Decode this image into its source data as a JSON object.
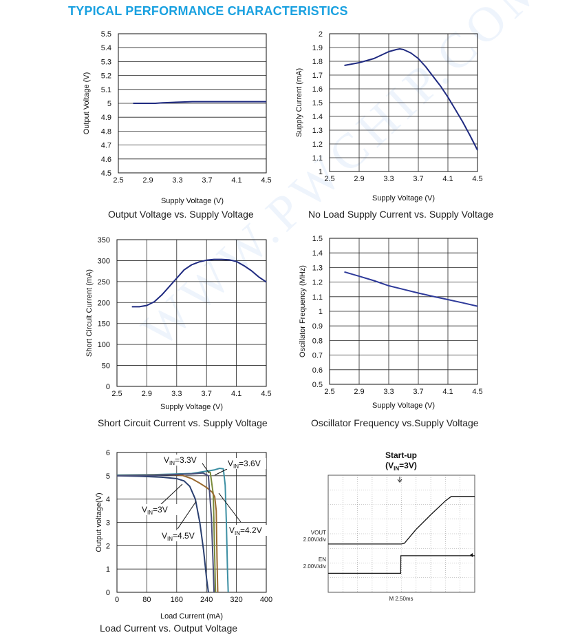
{
  "page": {
    "heading": "TYPICAL PERFORMANCE CHARACTERISTICS",
    "watermark": "WWW.PWCHIP.COM",
    "heading_color": "#1aa1e0"
  },
  "chart_data": [
    {
      "id": "c1",
      "type": "line",
      "caption": "Output Voltage vs. Supply Voltage",
      "xlabel": "Supply Voltage (V)",
      "ylabel": "Output Voltage (V)",
      "xlim": [
        2.5,
        4.5
      ],
      "ylim": [
        4.5,
        5.5
      ],
      "xticks": [
        2.5,
        2.9,
        3.3,
        3.7,
        4.1,
        4.5
      ],
      "yticks": [
        4.5,
        4.6,
        4.7,
        4.8,
        4.9,
        5,
        5.1,
        5.2,
        5.3,
        5.4,
        5.5
      ],
      "grid": "horizontal",
      "series": [
        {
          "color": "#1f2a80",
          "x": [
            2.7,
            3.0,
            3.1,
            3.3,
            3.5,
            3.7,
            4.0,
            4.3,
            4.5
          ],
          "y": [
            5.0,
            5.0,
            5.004,
            5.008,
            5.012,
            5.012,
            5.012,
            5.012,
            5.012
          ]
        }
      ]
    },
    {
      "id": "c2",
      "type": "line",
      "caption": "No Load Supply Current vs. Supply Voltage",
      "xlabel": "Supply Voltage (V)",
      "ylabel": "Supply Current (mA)",
      "xlim": [
        2.5,
        4.5
      ],
      "ylim": [
        1,
        2
      ],
      "xticks": [
        2.5,
        2.9,
        3.3,
        3.7,
        4.1,
        4.5
      ],
      "yticks": [
        1,
        1.1,
        1.2,
        1.3,
        1.4,
        1.5,
        1.6,
        1.7,
        1.8,
        1.9,
        2
      ],
      "grid": "both",
      "series": [
        {
          "color": "#1f2a80",
          "x": [
            2.7,
            2.8,
            2.9,
            3.0,
            3.1,
            3.2,
            3.3,
            3.4,
            3.45,
            3.5,
            3.6,
            3.7,
            3.8,
            3.9,
            4.0,
            4.1,
            4.2,
            4.3,
            4.4,
            4.5
          ],
          "y": [
            1.77,
            1.78,
            1.79,
            1.805,
            1.82,
            1.845,
            1.87,
            1.885,
            1.89,
            1.885,
            1.86,
            1.82,
            1.76,
            1.69,
            1.62,
            1.54,
            1.45,
            1.36,
            1.26,
            1.155
          ]
        }
      ]
    },
    {
      "id": "c3",
      "type": "line",
      "caption": "Short Circuit Current vs. Supply Voltage",
      "xlabel": "Supply Voltage (V)",
      "ylabel": "Short Circuit Current (mA)",
      "xlim": [
        2.5,
        4.5
      ],
      "ylim": [
        0,
        350
      ],
      "xticks": [
        2.5,
        2.9,
        3.3,
        3.7,
        4.1,
        4.5
      ],
      "yticks": [
        0,
        50,
        100,
        150,
        200,
        250,
        300,
        350
      ],
      "grid": "both",
      "series": [
        {
          "color": "#1f2a80",
          "x": [
            2.7,
            2.8,
            2.9,
            3.0,
            3.1,
            3.2,
            3.3,
            3.4,
            3.5,
            3.6,
            3.7,
            3.8,
            3.9,
            4.0,
            4.1,
            4.2,
            4.3,
            4.4,
            4.5
          ],
          "y": [
            190,
            190,
            193,
            202,
            218,
            238,
            258,
            278,
            290,
            297,
            301,
            303,
            303,
            302,
            298,
            288,
            276,
            261,
            249
          ]
        }
      ]
    },
    {
      "id": "c4",
      "type": "line",
      "caption": "Oscillator Frequency vs.Supply Voltage",
      "xlabel": "Supply Voltage (V)",
      "ylabel": "Oscillator Frequency (MHz)",
      "xlim": [
        2.5,
        4.5
      ],
      "ylim": [
        0.5,
        1.5
      ],
      "xticks": [
        2.5,
        2.9,
        3.3,
        3.7,
        4.1,
        4.5
      ],
      "yticks": [
        0.5,
        0.6,
        0.7,
        0.8,
        0.9,
        1,
        1.1,
        1.2,
        1.3,
        1.4,
        1.5
      ],
      "grid": "both",
      "series": [
        {
          "color": "#2e3a9a",
          "x": [
            2.7,
            2.9,
            3.1,
            3.3,
            3.5,
            3.7,
            3.9,
            4.1,
            4.3,
            4.5
          ],
          "y": [
            1.27,
            1.24,
            1.21,
            1.175,
            1.15,
            1.125,
            1.102,
            1.08,
            1.058,
            1.035
          ]
        }
      ]
    },
    {
      "id": "c5",
      "type": "line",
      "caption": "Load Current vs. Output Voltage",
      "xlabel": "Load Current (mA)",
      "ylabel": "Output voltage(V)",
      "xlim": [
        0,
        400
      ],
      "ylim": [
        0,
        6
      ],
      "xticks": [
        0,
        80,
        160,
        240,
        320,
        400
      ],
      "yticks": [
        0,
        1,
        2,
        3,
        4,
        5,
        6
      ],
      "grid": "both",
      "series": [
        {
          "name_main": "V",
          "name_sub": "IN",
          "name_tail": "=3V",
          "color": "#2a3f6f",
          "x": [
            0,
            60,
            120,
            160,
            180,
            195,
            210,
            222,
            232,
            240,
            245
          ],
          "y": [
            5.0,
            4.98,
            4.94,
            4.88,
            4.78,
            4.55,
            4.0,
            3.0,
            1.8,
            0.6,
            0
          ]
        },
        {
          "name_main": "V",
          "name_sub": "IN",
          "name_tail": "=3.3V",
          "color": "#7a8a3a",
          "x": [
            0,
            100,
            200,
            225,
            240,
            250,
            258,
            262,
            264
          ],
          "y": [
            5.02,
            5.04,
            5.08,
            5.15,
            5.2,
            5.15,
            4.2,
            1.5,
            0
          ]
        },
        {
          "name_main": "V",
          "name_sub": "IN",
          "name_tail": "=3.6V",
          "color": "#3c8fa3",
          "x": [
            0,
            100,
            200,
            260,
            275,
            285,
            290,
            293,
            296,
            298
          ],
          "y": [
            5.03,
            5.05,
            5.1,
            5.25,
            5.32,
            5.3,
            4.6,
            3.0,
            1.0,
            0
          ]
        },
        {
          "name_main": "V",
          "name_sub": "IN",
          "name_tail": "=4.2V",
          "color": "#9a6a30",
          "x": [
            0,
            100,
            150,
            175,
            200,
            220,
            240,
            255,
            262,
            266,
            268,
            270
          ],
          "y": [
            5.01,
            5.03,
            5.05,
            5.02,
            4.88,
            4.7,
            4.5,
            4.3,
            4.1,
            3.5,
            1.5,
            0
          ]
        },
        {
          "name_main": "V",
          "name_sub": "IN",
          "name_tail": "=4.5V",
          "color": "#4a4f7a",
          "x": [
            0,
            100,
            200,
            230,
            245,
            253,
            258,
            260
          ],
          "y": [
            5.0,
            5.02,
            5.08,
            5.12,
            5.0,
            3.2,
            1.0,
            0
          ]
        }
      ]
    },
    {
      "id": "c6",
      "type": "line",
      "title_main": "Start-up",
      "title_sub_main": "(V",
      "title_sub_sub": "IN",
      "title_sub_tail": "=3V)",
      "time_scale": "M 2.50ms",
      "ch1_label": "VOUT",
      "ch1_scale": "2.00V/div",
      "ch2_label": "EN",
      "ch2_scale": "2.00V/div",
      "x_divisions": 10,
      "y_divisions": 8,
      "series": [
        {
          "name": "VOUT",
          "color": "#111111",
          "x": [
            0,
            5.0,
            5.2,
            6.0,
            7.0,
            8.0,
            8.4,
            10
          ],
          "y": [
            3.3,
            3.3,
            3.35,
            4.3,
            5.3,
            6.25,
            6.55,
            6.55
          ]
        },
        {
          "name": "EN",
          "color": "#111111",
          "x": [
            0,
            4.95,
            4.96,
            10
          ],
          "y": [
            1.3,
            1.3,
            2.5,
            2.5
          ]
        }
      ]
    }
  ]
}
